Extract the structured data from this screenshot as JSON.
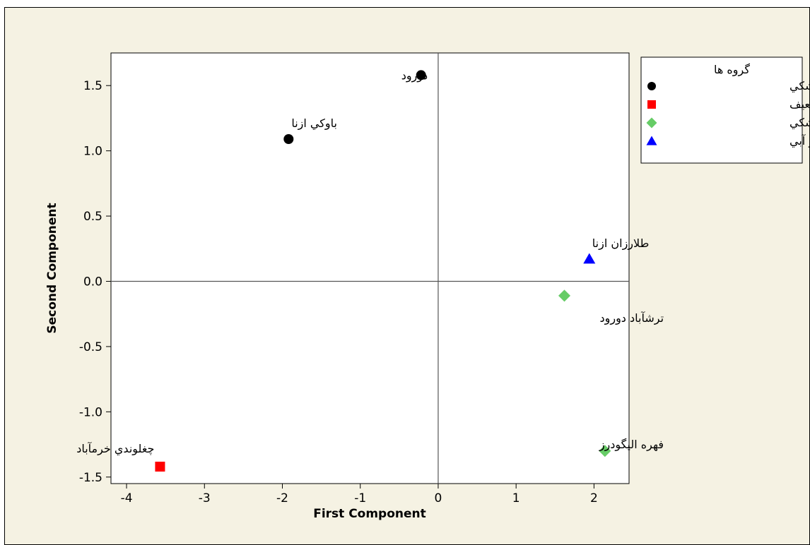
{
  "chart_data": {
    "type": "scatter",
    "xlabel": "First Component",
    "ylabel": "Second Component",
    "xlim": [
      -4.2,
      2.45
    ],
    "ylim": [
      -1.55,
      1.75
    ],
    "xticks": [
      -4,
      -3,
      -2,
      -1,
      0,
      1,
      2
    ],
    "yticks": [
      -1.5,
      -1.0,
      -0.5,
      0.0,
      0.5,
      1.0,
      1.5
    ],
    "ytick_labels": [
      "-1.5",
      "-1.0",
      "-0.5",
      "0.0",
      "0.5",
      "1.0",
      "1.5"
    ],
    "reference_lines": {
      "x": 0,
      "y": 0
    },
    "grid": false,
    "legend": {
      "title": "گروه ها",
      "placement": "right"
    },
    "series": [
      {
        "name": "حساس به خشکي",
        "marker": "circle",
        "color": "#000000",
        "points": [
          {
            "x": -0.22,
            "y": 1.58,
            "label": "دورود"
          },
          {
            "x": -1.92,
            "y": 1.09,
            "label": "باوکي ازنا"
          }
        ]
      },
      {
        "name": "ضعيف",
        "marker": "square",
        "color": "#ff0000",
        "points": [
          {
            "x": -3.57,
            "y": -1.42,
            "label": "چغلوندي خرمآباد"
          }
        ]
      },
      {
        "name": "مقاوم به خشکي",
        "marker": "diamond",
        "color": "#66cc66",
        "points": [
          {
            "x": 1.62,
            "y": -0.11,
            "label": "ترشآباد دورود"
          },
          {
            "x": 2.14,
            "y": -1.3,
            "label": "فهره اليگودرز"
          }
        ]
      },
      {
        "name": "مناسب ديم و آبي",
        "marker": "triangle",
        "color": "#0000ff",
        "points": [
          {
            "x": 1.94,
            "y": 0.17,
            "label": "طلارزان ازنا"
          }
        ]
      }
    ]
  }
}
